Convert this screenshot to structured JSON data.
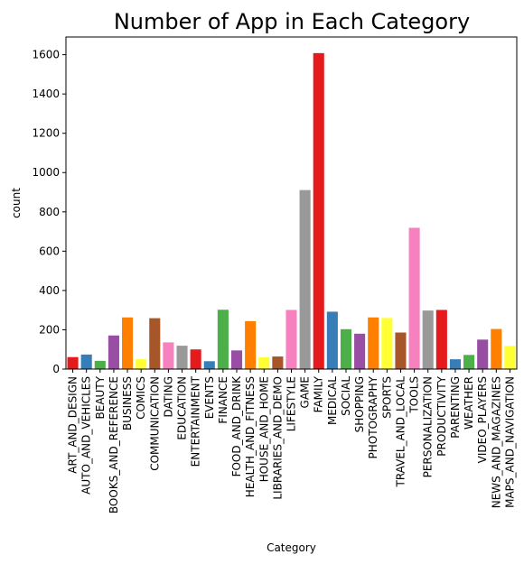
{
  "chart_data": {
    "type": "bar",
    "title": "Number of App in Each Category",
    "xlabel": "Category",
    "ylabel": "count",
    "ylim": [
      0,
      1690
    ],
    "yticks": [
      0,
      200,
      400,
      600,
      800,
      1000,
      1200,
      1400,
      1600
    ],
    "grid": false,
    "categories": [
      "ART_AND_DESIGN",
      "AUTO_AND_VEHICLES",
      "BEAUTY",
      "BOOKS_AND_REFERENCE",
      "BUSINESS",
      "COMICS",
      "COMMUNICATION",
      "DATING",
      "EDUCATION",
      "ENTERTAINMENT",
      "EVENTS",
      "FINANCE",
      "FOOD_AND_DRINK",
      "HEALTH_AND_FITNESS",
      "HOUSE_AND_HOME",
      "LIBRARIES_AND_DEMO",
      "LIFESTYLE",
      "GAME",
      "FAMILY",
      "MEDICAL",
      "SOCIAL",
      "SHOPPING",
      "PHOTOGRAPHY",
      "SPORTS",
      "TRAVEL_AND_LOCAL",
      "TOOLS",
      "PERSONALIZATION",
      "PRODUCTIVITY",
      "PARENTING",
      "WEATHER",
      "VIDEO_PLAYERS",
      "NEWS_AND_MAGAZINES",
      "MAPS_AND_NAVIGATION"
    ],
    "values": [
      61,
      74,
      42,
      171,
      263,
      50,
      259,
      136,
      119,
      100,
      40,
      302,
      95,
      244,
      60,
      64,
      301,
      911,
      1608,
      292,
      203,
      180,
      263,
      260,
      186,
      719,
      298,
      301,
      50,
      72,
      150,
      204,
      118
    ],
    "colors": [
      "#e41a1c",
      "#377eb8",
      "#4daf4a",
      "#984ea3",
      "#ff7f00",
      "#ffff33",
      "#a65628",
      "#f781bf",
      "#999999"
    ]
  }
}
